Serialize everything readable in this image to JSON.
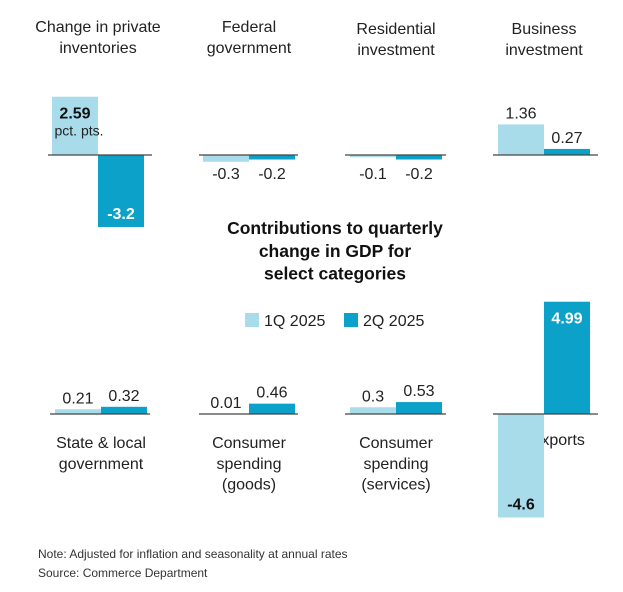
{
  "chart_data": {
    "type": "bar",
    "title": "Contributions to quarterly change in GDP for select categories",
    "unit_note": "pct. pts.",
    "series": [
      {
        "name": "1Q 2025",
        "color": "#a8dcea"
      },
      {
        "name": "2Q 2025",
        "color": "#0ba1c8"
      }
    ],
    "panels": [
      {
        "category": "Change in private inventories",
        "label_lines": [
          "Change in private",
          "inventories"
        ],
        "values": [
          2.59,
          -3.2
        ],
        "labels": [
          "2.59",
          "-3.2"
        ]
      },
      {
        "category": "Federal government",
        "label_lines": [
          "Federal",
          "government"
        ],
        "values": [
          -0.3,
          -0.2
        ],
        "labels": [
          "-0.3",
          "-0.2"
        ]
      },
      {
        "category": "Residential investment",
        "label_lines": [
          "Residential",
          "investment"
        ],
        "values": [
          -0.1,
          -0.2
        ],
        "labels": [
          "-0.1",
          "-0.2"
        ]
      },
      {
        "category": "Business investment",
        "label_lines": [
          "Business",
          "investment"
        ],
        "values": [
          1.36,
          0.27
        ],
        "labels": [
          "1.36",
          "0.27"
        ]
      },
      {
        "category": "State & local government",
        "label_lines": [
          "State & local",
          "government"
        ],
        "values": [
          0.21,
          0.32
        ],
        "labels": [
          "0.21",
          "0.32"
        ]
      },
      {
        "category": "Consumer spending (goods)",
        "label_lines": [
          "Consumer",
          "spending",
          "(goods)"
        ],
        "values": [
          0.01,
          0.46
        ],
        "labels": [
          "0.01",
          "0.46"
        ]
      },
      {
        "category": "Consumer spending (services)",
        "label_lines": [
          "Consumer",
          "spending",
          "(services)"
        ],
        "values": [
          0.3,
          0.53
        ],
        "labels": [
          "0.3",
          "0.53"
        ]
      },
      {
        "category": "Net exports",
        "label_lines": [
          "Net exports"
        ],
        "values": [
          -4.6,
          4.99
        ],
        "labels": [
          "-4.6",
          "4.99"
        ]
      }
    ]
  },
  "note": "Note: Adjusted for inflation and seasonality at annual rates",
  "source": "Source: Commerce Department"
}
